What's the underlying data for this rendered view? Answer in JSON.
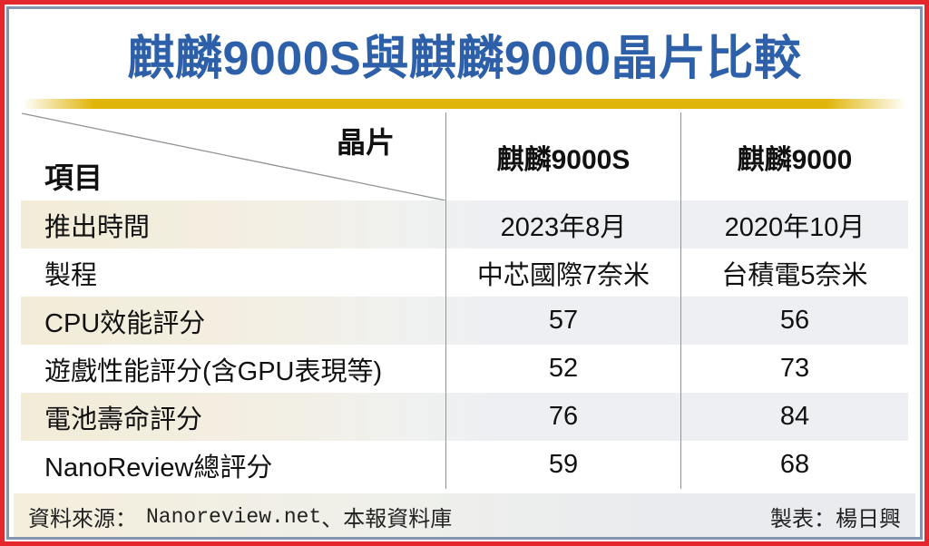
{
  "title": "麒麟9000S與麒麟9000晶片比較",
  "colors": {
    "outer_border": "#e3272c",
    "inner_frame": "#8495b1",
    "title_text": "#2e5fa9",
    "gold_bar": "#e0b50a",
    "row_tint_left": "#f2ecd7",
    "row_tint_right": "#edeff2",
    "divider_line": "#8e9398"
  },
  "chart_data": {
    "type": "table",
    "title": "麒麟9000S與麒麟9000晶片比較",
    "corner_top_right": "晶片",
    "corner_bottom_left": "項目",
    "columns": [
      "麒麟9000S",
      "麒麟9000"
    ],
    "rows": [
      {
        "label": "推出時間",
        "values": [
          "2023年8月",
          "2020年10月"
        ]
      },
      {
        "label": "製程",
        "values": [
          "中芯國際7奈米",
          "台積電5奈米"
        ]
      },
      {
        "label": "CPU效能評分",
        "values": [
          "57",
          "56"
        ]
      },
      {
        "label": "遊戲性能評分(含GPU表現等)",
        "values": [
          "52",
          "73"
        ]
      },
      {
        "label": "電池壽命評分",
        "values": [
          "76",
          "84"
        ]
      },
      {
        "label": "NanoReview總評分",
        "values": [
          "59",
          "68"
        ]
      }
    ]
  },
  "footer": {
    "source_label": "資料來源：",
    "source_value": "Nanoreview.net",
    "source_suffix": "、本報資料庫",
    "credit": "製表：楊日興"
  }
}
